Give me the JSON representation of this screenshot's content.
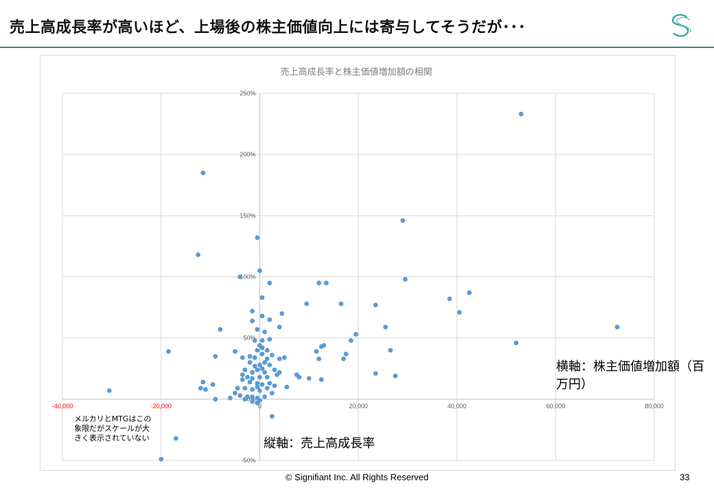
{
  "slide": {
    "title": "売上高成長率が高いほど、上場後の株主価値向上には寄与してそうだが･･･",
    "logo_icon": "signifiant-s-logo",
    "footer": "© Signifiant Inc. All Rights Reserved",
    "page_number": "33",
    "note": "メルカリとMTGはこの象限だがスケールが大きく表示されていない",
    "x_axis_label": "横軸：株主価値増加額（百万円）",
    "y_axis_label": "縦軸：売上高成長率",
    "accent_color": "#2a8a8a"
  },
  "chart_data": {
    "type": "scatter",
    "title": "売上高成長率と株主価値増加額の相関",
    "xlim": [
      -40000,
      80000
    ],
    "ylim": [
      -50,
      250
    ],
    "x_ticks": [
      "-40,000",
      "-20,000",
      "0",
      "20,000",
      "40,000",
      "60,000",
      "80,000"
    ],
    "x_tick_values": [
      -40000,
      -20000,
      0,
      20000,
      40000,
      60000,
      80000
    ],
    "y_ticks": [
      "-50%",
      "0%",
      "50%",
      "100%",
      "150%",
      "200%",
      "250%"
    ],
    "y_tick_values": [
      -50,
      0,
      50,
      100,
      150,
      200,
      250
    ],
    "marker_color": "#5b9bd5",
    "grid": true,
    "points": [
      [
        53000,
        233
      ],
      [
        -11500,
        185
      ],
      [
        29000,
        146
      ],
      [
        -12500,
        118
      ],
      [
        -500,
        132
      ],
      [
        29500,
        98
      ],
      [
        12000,
        95
      ],
      [
        13500,
        95
      ],
      [
        2000,
        95
      ],
      [
        -4000,
        100
      ],
      [
        0,
        105
      ],
      [
        500,
        83
      ],
      [
        9500,
        78
      ],
      [
        16500,
        78
      ],
      [
        23500,
        77
      ],
      [
        38500,
        82
      ],
      [
        42500,
        87
      ],
      [
        40500,
        71
      ],
      [
        -1500,
        72
      ],
      [
        500,
        68
      ],
      [
        2000,
        65
      ],
      [
        4500,
        70
      ],
      [
        -1500,
        64
      ],
      [
        25500,
        59
      ],
      [
        72500,
        59
      ],
      [
        -8000,
        57
      ],
      [
        -500,
        57
      ],
      [
        1000,
        55
      ],
      [
        4000,
        59
      ],
      [
        19500,
        53
      ],
      [
        52000,
        46
      ],
      [
        18500,
        48
      ],
      [
        12500,
        43
      ],
      [
        13000,
        44
      ],
      [
        -18500,
        39
      ],
      [
        -5000,
        39
      ],
      [
        11500,
        39
      ],
      [
        17500,
        37
      ],
      [
        26500,
        40
      ],
      [
        -9000,
        35
      ],
      [
        -3500,
        34
      ],
      [
        -2000,
        35
      ],
      [
        -1000,
        34
      ],
      [
        5000,
        34
      ],
      [
        4000,
        33
      ],
      [
        12000,
        33
      ],
      [
        17000,
        33
      ],
      [
        -1000,
        48
      ],
      [
        500,
        48
      ],
      [
        2000,
        49
      ],
      [
        -500,
        40
      ],
      [
        1500,
        40
      ],
      [
        500,
        37
      ],
      [
        2500,
        36
      ],
      [
        0,
        44
      ],
      [
        -2000,
        30
      ],
      [
        0,
        28
      ],
      [
        2000,
        28
      ],
      [
        500,
        25
      ],
      [
        3000,
        24
      ],
      [
        -3000,
        24
      ],
      [
        -1500,
        22
      ],
      [
        1000,
        22
      ],
      [
        4000,
        22
      ],
      [
        -3500,
        20
      ],
      [
        -2500,
        18
      ],
      [
        -1500,
        17
      ],
      [
        0,
        18
      ],
      [
        1500,
        18
      ],
      [
        3500,
        20
      ],
      [
        7500,
        20
      ],
      [
        8000,
        18
      ],
      [
        10000,
        17
      ],
      [
        12500,
        16
      ],
      [
        23500,
        21
      ],
      [
        27500,
        19
      ],
      [
        -3500,
        16
      ],
      [
        -2000,
        14
      ],
      [
        -500,
        13
      ],
      [
        500,
        12
      ],
      [
        2000,
        13
      ],
      [
        3000,
        11
      ],
      [
        5500,
        10
      ],
      [
        -500,
        10
      ],
      [
        1500,
        9
      ],
      [
        -1500,
        8
      ],
      [
        0,
        7
      ],
      [
        -3000,
        9
      ],
      [
        -4500,
        9
      ],
      [
        -5000,
        5
      ],
      [
        -4000,
        3
      ],
      [
        -2500,
        2
      ],
      [
        -1500,
        2
      ],
      [
        -500,
        1
      ],
      [
        1000,
        2
      ],
      [
        2500,
        5
      ],
      [
        -6000,
        1
      ],
      [
        -3000,
        0
      ],
      [
        -1500,
        -2
      ],
      [
        -500,
        -3
      ],
      [
        0,
        -1
      ],
      [
        -11500,
        14
      ],
      [
        -12000,
        9
      ],
      [
        -9500,
        12
      ],
      [
        -11000,
        8
      ],
      [
        -9000,
        0
      ],
      [
        -30500,
        7
      ],
      [
        2500,
        -14
      ],
      [
        -17000,
        -32
      ],
      [
        -20000,
        -49
      ],
      [
        1000,
        30
      ],
      [
        -1000,
        27
      ],
      [
        500,
        42
      ],
      [
        1500,
        33
      ],
      [
        -500,
        24
      ]
    ]
  }
}
